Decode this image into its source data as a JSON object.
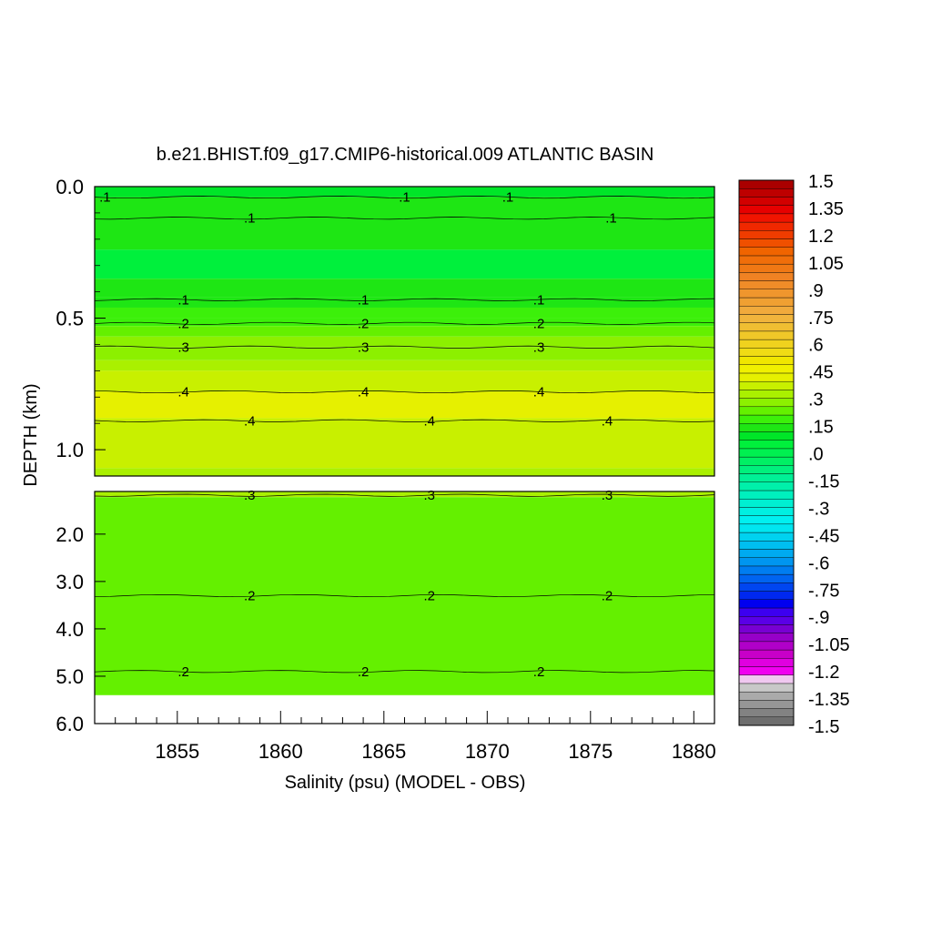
{
  "chart_data": {
    "type": "heatmap",
    "title": "b.e21.BHIST.f09_g17.CMIP6-historical.009 ATLANTIC BASIN",
    "xlabel": "Salinity (psu) (MODEL - OBS)",
    "ylabel": "DEPTH (km)",
    "x_ticks": [
      "1855",
      "1860",
      "1865",
      "1870",
      "1875",
      "1880"
    ],
    "xlim": [
      1851,
      1881
    ],
    "upper_panel": {
      "ylim": [
        0.0,
        1.1
      ],
      "y_ticks": [
        "0.0",
        "0.5",
        "1.0"
      ],
      "y_tick_values": [
        0.0,
        0.5,
        1.0
      ]
    },
    "lower_panel": {
      "ylim": [
        1.1,
        6.0
      ],
      "data_bottom": 5.4,
      "y_ticks": [
        "2.0",
        "3.0",
        "4.0",
        "5.0",
        "6.0"
      ],
      "y_tick_values": [
        2.0,
        3.0,
        4.0,
        5.0,
        6.0
      ]
    },
    "bands": [
      {
        "top": 0.0,
        "bottom": 0.04,
        "value": 0.1
      },
      {
        "top": 0.04,
        "bottom": 0.24,
        "value": 0.15
      },
      {
        "top": 0.24,
        "bottom": 0.35,
        "value": 0.05
      },
      {
        "top": 0.35,
        "bottom": 0.42,
        "value": 0.15
      },
      {
        "top": 0.42,
        "bottom": 0.46,
        "value": 0.13
      },
      {
        "top": 0.46,
        "bottom": 0.5,
        "value": 0.18
      },
      {
        "top": 0.5,
        "bottom": 0.53,
        "value": 0.2
      },
      {
        "top": 0.53,
        "bottom": 0.57,
        "value": 0.23
      },
      {
        "top": 0.57,
        "bottom": 0.61,
        "value": 0.26
      },
      {
        "top": 0.61,
        "bottom": 0.66,
        "value": 0.29
      },
      {
        "top": 0.66,
        "bottom": 0.7,
        "value": 0.31
      },
      {
        "top": 0.7,
        "bottom": 0.78,
        "value": 0.35
      },
      {
        "top": 0.78,
        "bottom": 0.88,
        "value": 0.41
      },
      {
        "top": 0.88,
        "bottom": 1.07,
        "value": 0.36
      },
      {
        "top": 1.07,
        "bottom": 1.1,
        "value": 0.3
      },
      {
        "top": 1.1,
        "bottom": 1.22,
        "value": 0.31
      },
      {
        "top": 1.22,
        "bottom": 5.4,
        "value": 0.25
      }
    ],
    "contours": [
      {
        "depth": 0.04,
        "label": ".1",
        "label_x": [
          1851.5,
          1866.0,
          1871.0
        ]
      },
      {
        "depth": 0.12,
        "label": ".1",
        "label_x": [
          1858.5,
          1876.0
        ]
      },
      {
        "depth": 0.43,
        "label": ".1",
        "label_x": [
          1855.3,
          1864.0,
          1872.5
        ]
      },
      {
        "depth": 0.52,
        "label": ".2",
        "label_x": [
          1855.3,
          1864.0,
          1872.5
        ]
      },
      {
        "depth": 0.61,
        "label": ".3",
        "label_x": [
          1855.3,
          1864.0,
          1872.5
        ]
      },
      {
        "depth": 0.78,
        "label": ".4",
        "label_x": [
          1855.3,
          1864.0,
          1872.5
        ]
      },
      {
        "depth": 0.89,
        "label": ".4",
        "label_x": [
          1858.5,
          1867.2,
          1875.8
        ]
      },
      {
        "depth": 1.18,
        "label": ".3",
        "label_x": [
          1858.5,
          1867.2,
          1875.8
        ]
      },
      {
        "depth": 3.3,
        "label": ".2",
        "label_x": [
          1858.5,
          1867.2,
          1875.8
        ]
      },
      {
        "depth": 4.9,
        "label": ".2",
        "label_x": [
          1855.3,
          1864.0,
          1872.5
        ]
      }
    ],
    "colorbar": {
      "labels": [
        "1.5",
        "1.35",
        "1.2",
        "1.05",
        ".9",
        ".75",
        ".6",
        ".45",
        ".3",
        ".15",
        ".0",
        "-.15",
        "-.3",
        "-.45",
        "-.6",
        "-.75",
        "-.9",
        "-1.05",
        "-1.2",
        "-1.35",
        "-1.5"
      ],
      "min": -1.5,
      "max": 1.5,
      "colors": [
        "#6e6e6e",
        "#828282",
        "#969696",
        "#aaaaaa",
        "#c8c8c8",
        "#f0c8f0",
        "#f000f0",
        "#e000e0",
        "#c800c8",
        "#b000c8",
        "#9600c8",
        "#7800d2",
        "#5a00e6",
        "#3c00f0",
        "#0000f0",
        "#0028f0",
        "#0046f0",
        "#0064f0",
        "#007df0",
        "#0096f0",
        "#00aaf0",
        "#00bef0",
        "#00d2f0",
        "#00e6f0",
        "#00f0f0",
        "#00f0e1",
        "#00f0d2",
        "#00f0be",
        "#00f0aa",
        "#00f096",
        "#00f07d",
        "#00f064",
        "#00f050",
        "#00f03c",
        "#00e628",
        "#1ee614",
        "#3cf00a",
        "#64f000",
        "#8cf000",
        "#aaf000",
        "#c8f000",
        "#e6f000",
        "#f0f000",
        "#f0e600",
        "#f0dc14",
        "#f0d21e",
        "#f0c828",
        "#f0be32",
        "#f0b43c",
        "#f0aa3c",
        "#f0a032",
        "#f0962d",
        "#f08c28",
        "#f08223",
        "#f07814",
        "#f06e0a",
        "#f06400",
        "#f05000",
        "#f03c00",
        "#f02800",
        "#f01400",
        "#e60000",
        "#d20000",
        "#be0000",
        "#aa0000"
      ]
    }
  }
}
